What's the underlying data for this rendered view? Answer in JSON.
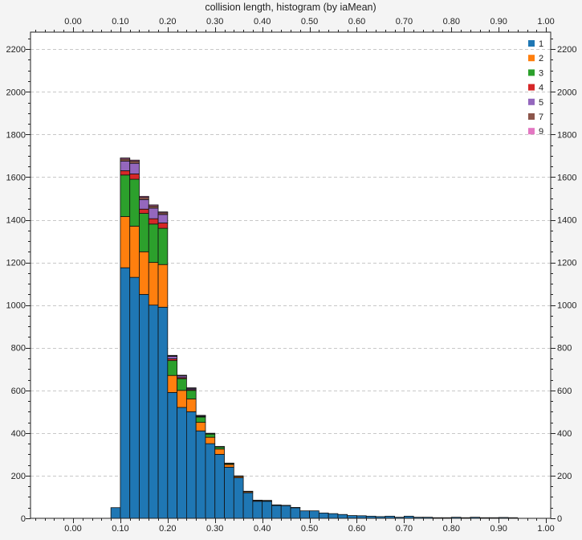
{
  "chart_data": {
    "type": "bar",
    "stacked": true,
    "title": "collision length, histogram (by iaMean)",
    "xlabel": "",
    "ylabel": "",
    "xlim": [
      -0.09,
      1.01
    ],
    "ylim": [
      0,
      2280
    ],
    "x_ticks": [
      0.0,
      0.1,
      0.2,
      0.3,
      0.4,
      0.5,
      0.6,
      0.7,
      0.8,
      0.9,
      1.0
    ],
    "x_tick_labels": [
      "0.00",
      "0.10",
      "0.20",
      "0.30",
      "0.40",
      "0.50",
      "0.60",
      "0.70",
      "0.80",
      "0.90",
      "1.00"
    ],
    "y_ticks": [
      0,
      200,
      400,
      600,
      800,
      1000,
      1200,
      1400,
      1600,
      1800,
      2000,
      2200
    ],
    "y_tick_labels": [
      "0",
      "200",
      "400",
      "600",
      "800",
      "1000",
      "1200",
      "1400",
      "1600",
      "1800",
      "2000",
      "2200"
    ],
    "grid": true,
    "legend_position": "top-right",
    "bin_width": 0.02,
    "bin_left_edges": [
      0.08,
      0.1,
      0.12,
      0.14,
      0.16,
      0.18,
      0.2,
      0.22,
      0.24,
      0.26,
      0.28,
      0.3,
      0.32,
      0.34,
      0.36,
      0.38,
      0.4,
      0.42,
      0.44,
      0.46,
      0.48,
      0.5,
      0.52,
      0.54,
      0.56,
      0.58,
      0.6,
      0.62,
      0.64,
      0.66,
      0.68,
      0.7,
      0.72,
      0.74,
      0.76,
      0.78,
      0.8,
      0.82,
      0.84,
      0.86,
      0.88,
      0.9,
      0.92
    ],
    "series": [
      {
        "name": "1",
        "color": "#1f77b4",
        "values": [
          50,
          1175,
          1130,
          1050,
          1000,
          990,
          590,
          520,
          500,
          410,
          350,
          300,
          240,
          190,
          120,
          80,
          80,
          60,
          60,
          50,
          35,
          35,
          25,
          22,
          18,
          13,
          12,
          10,
          8,
          10,
          5,
          10,
          5,
          5,
          3,
          3,
          5,
          3,
          5,
          3,
          3,
          4,
          3
        ]
      },
      {
        "name": "2",
        "color": "#ff7f0e",
        "values": [
          0,
          240,
          240,
          200,
          200,
          200,
          80,
          80,
          60,
          40,
          30,
          25,
          12,
          6,
          5,
          4,
          3,
          2,
          1,
          1,
          0,
          0,
          0,
          0,
          0,
          0,
          0,
          0,
          0,
          0,
          0,
          0,
          0,
          0,
          0,
          0,
          0,
          0,
          0,
          0,
          0,
          0,
          0
        ]
      },
      {
        "name": "3",
        "color": "#2ca02c",
        "values": [
          0,
          195,
          220,
          180,
          180,
          170,
          70,
          55,
          40,
          25,
          15,
          10,
          5,
          3,
          2,
          1,
          1,
          1,
          0,
          0,
          0,
          0,
          0,
          0,
          0,
          0,
          0,
          0,
          0,
          0,
          0,
          0,
          0,
          0,
          0,
          0,
          0,
          0,
          0,
          0,
          0,
          0,
          0
        ]
      },
      {
        "name": "4",
        "color": "#d62728",
        "values": [
          0,
          20,
          25,
          20,
          25,
          25,
          8,
          5,
          4,
          3,
          2,
          1,
          1,
          0,
          0,
          0,
          0,
          0,
          0,
          0,
          0,
          0,
          0,
          0,
          0,
          0,
          0,
          0,
          0,
          0,
          0,
          0,
          0,
          0,
          0,
          0,
          0,
          0,
          0,
          0,
          0,
          0,
          0
        ]
      },
      {
        "name": "5",
        "color": "#9467bd",
        "values": [
          0,
          45,
          50,
          45,
          50,
          40,
          12,
          8,
          6,
          4,
          2,
          1,
          1,
          0,
          0,
          0,
          0,
          0,
          0,
          0,
          0,
          0,
          0,
          0,
          0,
          0,
          0,
          0,
          0,
          0,
          0,
          0,
          0,
          0,
          0,
          0,
          0,
          0,
          0,
          0,
          0,
          0,
          0
        ]
      },
      {
        "name": "7",
        "color": "#8c564b",
        "values": [
          0,
          10,
          10,
          10,
          10,
          8,
          3,
          2,
          1,
          1,
          0,
          0,
          0,
          0,
          0,
          0,
          0,
          0,
          0,
          0,
          0,
          0,
          0,
          0,
          0,
          0,
          0,
          0,
          0,
          0,
          0,
          0,
          0,
          0,
          0,
          0,
          0,
          0,
          0,
          0,
          0,
          0,
          0
        ]
      },
      {
        "name": "9",
        "color": "#e377c2",
        "values": [
          0,
          5,
          5,
          5,
          5,
          4,
          1,
          1,
          1,
          0,
          0,
          0,
          0,
          0,
          0,
          0,
          0,
          0,
          0,
          0,
          0,
          0,
          0,
          0,
          0,
          0,
          0,
          0,
          0,
          0,
          0,
          0,
          0,
          0,
          0,
          0,
          0,
          0,
          0,
          0,
          0,
          0,
          0
        ]
      }
    ]
  }
}
